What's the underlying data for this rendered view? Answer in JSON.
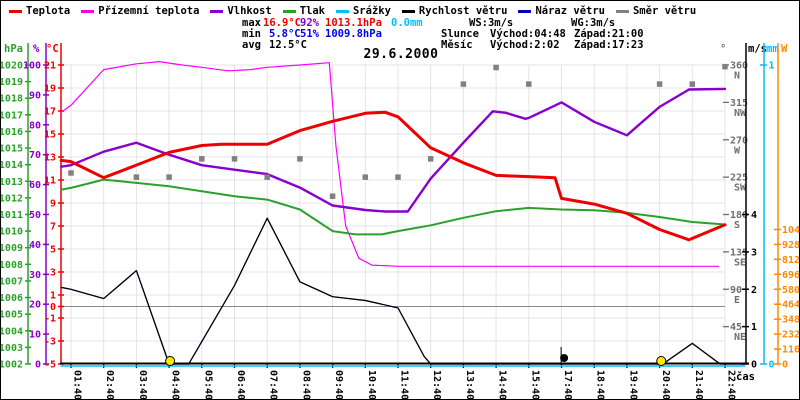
{
  "title": "29.6.2000",
  "legend": {
    "items": [
      {
        "key": "temperature",
        "label": "Teplota",
        "color": "#ee0000"
      },
      {
        "key": "ground-temperature",
        "label": "Přízemní teplota",
        "color": "#ee00ee"
      },
      {
        "key": "humidity",
        "label": "Vlhkost",
        "color": "#8800cc"
      },
      {
        "key": "pressure",
        "label": "Tlak",
        "color": "#2aa12a"
      },
      {
        "key": "precipitation",
        "label": "Srážky",
        "color": "#00bfff"
      },
      {
        "key": "wind-speed",
        "label": "Rychlost větru",
        "color": "#000000"
      },
      {
        "key": "wind-gust",
        "label": "Náraz větru",
        "color": "#0000bb"
      },
      {
        "key": "wind-direction",
        "label": "Směr větru",
        "color": "#808080"
      }
    ]
  },
  "stats": {
    "max_label": "max",
    "max_temp": "16.9°C",
    "max_humidity": "92%",
    "max_pressure": "1013.1hPa",
    "max_precip": "0.0mm",
    "min_label": "min",
    "min_temp": "5.8°C",
    "min_humidity": "51%",
    "min_pressure": "1009.8hPa",
    "avg_label": "avg",
    "avg_temp": "12.5°C",
    "colors": {
      "red": "#ee0000",
      "purple": "#8800cc",
      "blue": "#0000ee",
      "cyan": "#00bfff",
      "black": "#000000"
    }
  },
  "wind_info": {
    "ws": "WS:3m/s",
    "wg": "WG:3m/s"
  },
  "sun": {
    "label": "Slunce",
    "rise": "Východ:04:48",
    "set": "Západ:21:00"
  },
  "moon": {
    "label": "Měsíc",
    "rise": "Východ:2:02",
    "set": "Západ:17:23"
  },
  "axis_headers": {
    "pressure": "hPa",
    "humidity": "%",
    "temperature": "°C",
    "direction": "°",
    "wind": "m/s",
    "precip": "mm",
    "radiation": "W",
    "time": "čas"
  },
  "chart_data": {
    "type": "line",
    "title": "29.6.2000",
    "x_labels": [
      "01:40",
      "02:40",
      "03:40",
      "04:40",
      "05:40",
      "06:40",
      "07:40",
      "08:40",
      "09:40",
      "10:40",
      "11:40",
      "12:40",
      "13:40",
      "14:40",
      "15:40",
      "17:40",
      "18:40",
      "19:40",
      "20:40",
      "21:40",
      "22:40"
    ],
    "axes": {
      "temperature_c": {
        "min": -5,
        "max": 21,
        "color": "#ee0000",
        "ticks": [
          21,
          19,
          17,
          15,
          13,
          11,
          9,
          7,
          5,
          3,
          1,
          0,
          -1,
          -3,
          -5
        ]
      },
      "humidity_pct": {
        "min": 0,
        "max": 100,
        "color": "#8800cc",
        "ticks": [
          100,
          90,
          80,
          70,
          60,
          50,
          40,
          30,
          20,
          10,
          0
        ]
      },
      "pressure_hpa": {
        "min": 1002,
        "max": 1020,
        "color": "#2aa12a",
        "ticks": [
          1020,
          1019,
          1018,
          1017,
          1016,
          1015,
          1014,
          1013,
          1012,
          1011,
          1010,
          1009,
          1008,
          1007,
          1006,
          1005,
          1004,
          1003,
          1002
        ]
      },
      "direction_deg": {
        "min": 0,
        "max": 360,
        "color": "#6e6e6e",
        "ticks": [
          {
            "value": 360,
            "label": "N"
          },
          {
            "value": 315,
            "label": "NW"
          },
          {
            "value": 270,
            "label": "W"
          },
          {
            "value": 225,
            "label": "SW"
          },
          {
            "value": 180,
            "label": "S"
          },
          {
            "value": 135,
            "label": "SE"
          },
          {
            "value": 90,
            "label": "E"
          },
          {
            "value": 45,
            "label": "NE"
          }
        ]
      },
      "wind_ms": {
        "min": 0,
        "max": 8,
        "color": "#000000",
        "ticks": [
          4,
          3,
          2,
          1,
          0
        ]
      },
      "precip_mm": {
        "min": 0,
        "max": 1,
        "color": "#00bfff",
        "ticks": [
          1,
          0
        ]
      },
      "radiation_w": {
        "min": 0,
        "max": 2320,
        "color": "#ff8800",
        "ticks": [
          1044,
          928,
          812,
          696,
          580,
          464,
          348,
          232,
          116,
          0
        ]
      }
    },
    "grid": {
      "vertical": true,
      "horizontal_at_c": [
        21,
        19,
        17,
        15,
        13,
        11,
        9,
        7,
        5,
        3,
        1,
        -1,
        -3,
        -5
      ],
      "zero_line_c": 0
    },
    "series": [
      {
        "key": "wind-gust",
        "name": "Náraz větru",
        "axis": "wind_ms",
        "color": "#0000bb",
        "width": 1.2,
        "points": [
          [
            -0.3,
            2.05
          ],
          [
            0,
            2.0
          ],
          [
            1,
            1.75
          ],
          [
            2,
            2.5
          ],
          [
            3,
            0
          ],
          [
            3.6,
            0
          ],
          [
            4,
            0.6
          ],
          [
            5,
            2.1
          ],
          [
            6,
            3.9
          ],
          [
            7,
            2.2
          ],
          [
            8,
            1.8
          ],
          [
            9,
            1.7
          ],
          [
            10,
            1.5
          ],
          [
            10.8,
            0.2
          ],
          [
            11,
            0
          ],
          [
            18.1,
            0
          ],
          [
            19,
            0.55
          ],
          [
            19.85,
            0
          ],
          [
            20.6,
            0
          ]
        ]
      },
      {
        "key": "precipitation",
        "name": "Srážky",
        "axis": "precip_mm",
        "color": "#00bfff",
        "width": 1.6,
        "y_offset": 2,
        "points": [
          [
            -0.3,
            0
          ],
          [
            20.6,
            0
          ]
        ]
      },
      {
        "key": "wind-speed",
        "name": "Rychlost větru",
        "axis": "wind_ms",
        "color": "#000000",
        "width": 1.2,
        "points": [
          [
            -0.3,
            2.05
          ],
          [
            0,
            2.0
          ],
          [
            1,
            1.75
          ],
          [
            2,
            2.5
          ],
          [
            3,
            0
          ],
          [
            3.6,
            0
          ],
          [
            4,
            0.6
          ],
          [
            5,
            2.1
          ],
          [
            6,
            3.9
          ],
          [
            7,
            2.2
          ],
          [
            8,
            1.8
          ],
          [
            9,
            1.7
          ],
          [
            10,
            1.5
          ],
          [
            10.8,
            0.2
          ],
          [
            11,
            0
          ],
          [
            18.1,
            0
          ],
          [
            19,
            0.55
          ],
          [
            19.85,
            0
          ],
          [
            20.6,
            0
          ]
        ]
      },
      {
        "key": "ground-temperature",
        "name": "Přízemní teplota",
        "axis": "temperature_c",
        "color": "#ff00ff",
        "width": 1.2,
        "points": [
          [
            -0.3,
            16.9
          ],
          [
            0,
            17.5
          ],
          [
            1,
            20.6
          ],
          [
            2,
            21.1
          ],
          [
            2.7,
            21.3
          ],
          [
            3.4,
            21.0
          ],
          [
            4,
            20.8
          ],
          [
            4.8,
            20.5
          ],
          [
            5.5,
            20.6
          ],
          [
            6,
            20.8
          ],
          [
            7,
            21.0
          ],
          [
            7.9,
            21.2
          ],
          [
            8.1,
            14.0
          ],
          [
            8.4,
            7.0
          ],
          [
            8.8,
            4.2
          ],
          [
            9.2,
            3.6
          ],
          [
            10,
            3.5
          ],
          [
            19.8,
            3.5
          ]
        ]
      },
      {
        "key": "pressure",
        "name": "Tlak",
        "axis": "pressure_hpa",
        "color": "#2aa12a",
        "width": 2,
        "points": [
          [
            -0.3,
            1012.5
          ],
          [
            0,
            1012.6
          ],
          [
            1,
            1013.1
          ],
          [
            2,
            1012.9
          ],
          [
            3,
            1012.7
          ],
          [
            4,
            1012.4
          ],
          [
            5,
            1012.1
          ],
          [
            6,
            1011.9
          ],
          [
            7,
            1011.3
          ],
          [
            8,
            1010.0
          ],
          [
            8.7,
            1009.8
          ],
          [
            9.5,
            1009.8
          ],
          [
            10,
            1010.0
          ],
          [
            11,
            1010.35
          ],
          [
            12,
            1010.8
          ],
          [
            13,
            1011.2
          ],
          [
            14,
            1011.4
          ],
          [
            15,
            1011.3
          ],
          [
            16,
            1011.25
          ],
          [
            17,
            1011.1
          ],
          [
            18,
            1010.85
          ],
          [
            19,
            1010.55
          ],
          [
            20,
            1010.4
          ]
        ]
      },
      {
        "key": "humidity",
        "name": "Vlhkost",
        "axis": "humidity_pct",
        "color": "#8800cc",
        "width": 2.4,
        "points": [
          [
            -0.3,
            66
          ],
          [
            0,
            66.5
          ],
          [
            1,
            71
          ],
          [
            2,
            74
          ],
          [
            3,
            70
          ],
          [
            4,
            66.5
          ],
          [
            5,
            65
          ],
          [
            6,
            63.5
          ],
          [
            7,
            59
          ],
          [
            8,
            53
          ],
          [
            9,
            51.5
          ],
          [
            9.6,
            51
          ],
          [
            10.3,
            51
          ],
          [
            11,
            62
          ],
          [
            12,
            74
          ],
          [
            12.9,
            84.5
          ],
          [
            13.3,
            84
          ],
          [
            13.9,
            82
          ],
          [
            14,
            82.3
          ],
          [
            15,
            87.5
          ],
          [
            16,
            81
          ],
          [
            17,
            76.5
          ],
          [
            18,
            86
          ],
          [
            18.9,
            91.8
          ],
          [
            20,
            92
          ]
        ]
      },
      {
        "key": "temperature",
        "name": "Teplota",
        "axis": "temperature_c",
        "color": "#ee0000",
        "width": 3,
        "points": [
          [
            -0.3,
            12.7
          ],
          [
            0,
            12.6
          ],
          [
            1,
            11.2
          ],
          [
            2,
            12.3
          ],
          [
            3,
            13.4
          ],
          [
            4,
            14.0
          ],
          [
            4.6,
            14.1
          ],
          [
            6,
            14.1
          ],
          [
            7,
            15.3
          ],
          [
            8,
            16.1
          ],
          [
            9,
            16.8
          ],
          [
            9.6,
            16.9
          ],
          [
            10,
            16.5
          ],
          [
            11,
            13.8
          ],
          [
            12,
            12.5
          ],
          [
            13,
            11.4
          ],
          [
            14,
            11.3
          ],
          [
            14.8,
            11.2
          ],
          [
            15,
            9.4
          ],
          [
            16,
            8.9
          ],
          [
            17,
            8.1
          ],
          [
            18,
            6.7
          ],
          [
            18.9,
            5.8
          ],
          [
            20,
            7.1
          ]
        ]
      }
    ],
    "wind_direction_points": {
      "name": "Směr větru",
      "color": "#808080",
      "points": [
        [
          0,
          230
        ],
        [
          2,
          225
        ],
        [
          3,
          225
        ],
        [
          4,
          247
        ],
        [
          5,
          247
        ],
        [
          6,
          225
        ],
        [
          7,
          247
        ],
        [
          8,
          202
        ],
        [
          9,
          225
        ],
        [
          10,
          225
        ],
        [
          11,
          247
        ],
        [
          12,
          337
        ],
        [
          13,
          357
        ],
        [
          14,
          337
        ],
        [
          18,
          337
        ],
        [
          19,
          337
        ],
        [
          20,
          358
        ]
      ]
    },
    "markers": [
      {
        "idx": 3.03,
        "type": "sunrise",
        "color": "#ffe800"
      },
      {
        "idx": 18.05,
        "type": "sunset",
        "color": "#ffe800"
      },
      {
        "idx": 15.08,
        "type": "moonset",
        "color": "#000000",
        "tick": true
      }
    ]
  }
}
